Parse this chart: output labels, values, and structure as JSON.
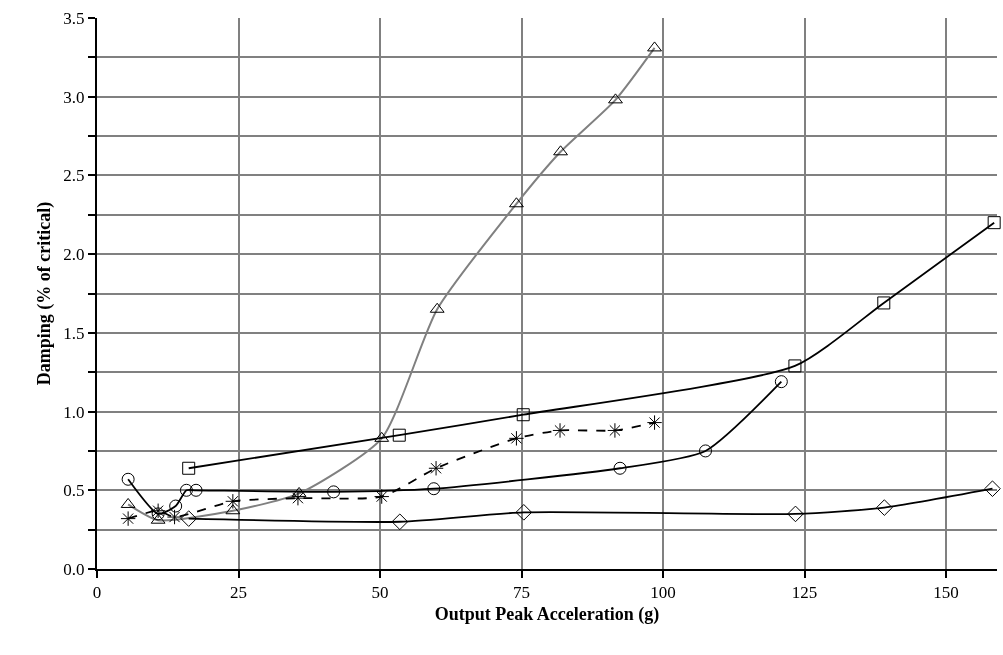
{
  "chart_data": {
    "type": "line",
    "xlabel": "Output Peak Acceleration (g)",
    "ylabel": "Damping (% of critical)",
    "xlim": [
      0,
      159
    ],
    "xticks": [
      0,
      25,
      50,
      75,
      100,
      125,
      150
    ],
    "ylim": [
      0,
      3.5
    ],
    "yticks": [
      {
        "value": 0,
        "label": "0.0"
      },
      {
        "value": 0.25,
        "label": null
      },
      {
        "value": 0.5,
        "label": "0.5"
      },
      {
        "value": 0.75,
        "label": null
      },
      {
        "value": 1,
        "label": "1.0"
      },
      {
        "value": 1.25,
        "label": null
      },
      {
        "value": 1.5,
        "label": "1.5"
      },
      {
        "value": 1.75,
        "label": null
      },
      {
        "value": 2,
        "label": "2.0"
      },
      {
        "value": 2.25,
        "label": null
      },
      {
        "value": 2.5,
        "label": "2.5"
      },
      {
        "value": 2.75,
        "label": null
      },
      {
        "value": 3,
        "label": "3.0"
      },
      {
        "value": 3.25,
        "label": null
      },
      {
        "value": 3.5,
        "label": "3.5"
      }
    ],
    "grid": true,
    "series": [
      {
        "color": "#808080",
        "marker": "triangle",
        "line_style": "solid",
        "x": [
          5.5,
          10.8,
          24.0,
          35.7,
          50.3,
          60.1,
          74.1,
          81.9,
          91.6,
          98.5
        ],
        "values": [
          0.41,
          0.31,
          0.37,
          0.48,
          0.83,
          1.65,
          2.32,
          2.65,
          2.98,
          3.31
        ]
      },
      {
        "color": "#000000",
        "marker": "circle",
        "line_style": "solid",
        "x": [
          5.5,
          10.8,
          13.9,
          15.8,
          17.5,
          41.8,
          59.5,
          92.4,
          107.5,
          120.9
        ],
        "values": [
          0.57,
          0.35,
          0.4,
          0.5,
          0.5,
          0.49,
          0.51,
          0.64,
          0.75,
          1.19
        ]
      },
      {
        "color": "#000000",
        "marker": "square",
        "line_style": "solid",
        "x": [
          16.2,
          53.4,
          75.3,
          123.3,
          139,
          158.5
        ],
        "values": [
          0.64,
          0.85,
          0.98,
          1.29,
          1.69,
          2.2
        ]
      },
      {
        "color": "#000000",
        "marker": "diamond",
        "line_style": "solid",
        "x": [
          16.2,
          53.5,
          75.4,
          123.4,
          139.1,
          158.2
        ],
        "values": [
          0.32,
          0.3,
          0.36,
          0.35,
          0.39,
          0.51
        ]
      },
      {
        "color": "#000000",
        "marker": "cross",
        "line_style": "dashed",
        "x": [
          5.5,
          10.8,
          13.7,
          24.0,
          35.5,
          50.3,
          59.9,
          74.1,
          81.8,
          91.5,
          98.5
        ],
        "values": [
          0.32,
          0.37,
          0.33,
          0.43,
          0.45,
          0.46,
          0.64,
          0.83,
          0.88,
          0.88,
          0.93
        ]
      }
    ]
  }
}
